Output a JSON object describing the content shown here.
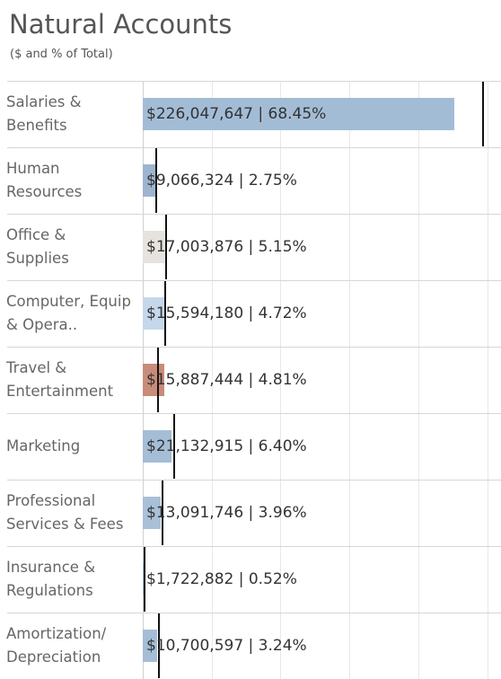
{
  "chart_data": {
    "type": "bar",
    "orientation": "horizontal",
    "title": "Natural Accounts",
    "subtitle": "($ and % of Total)",
    "categories": [
      "Salaries & Benefits",
      "Human Resources",
      "Office & Supplies",
      "Computer, Equip & Opera..",
      "Travel & Entertainment",
      "Marketing",
      "Professional Services & Fees",
      "Insurance & Regulations",
      "Amortization/ Depreciation"
    ],
    "values": [
      226047647,
      9066324,
      17003876,
      15594180,
      15887444,
      21132915,
      13091746,
      1722882,
      10700597
    ],
    "value_labels": [
      "$226,047,647 | 68.45%",
      "$9,066,324 | 2.75%",
      "$17,003,876 | 5.15%",
      "$15,594,180 | 4.72%",
      "$15,887,444 | 4.81%",
      "$21,132,915 | 6.40%",
      "$13,091,746 | 3.96%",
      "$1,722,882 | 0.52%",
      "$10,700,597 | 3.24%"
    ],
    "colors": [
      "#a3bcd6",
      "#9db5cf",
      "#e6e3de",
      "#c5d7ea",
      "#c98b7a",
      "#a5bdd6",
      "#a9c0d8",
      "#a5bdd6",
      "#a5bdd6"
    ],
    "reference_values": [
      247000000,
      9800000,
      17000000,
      16300000,
      11100000,
      22800000,
      14400000,
      1300000,
      11700000
    ],
    "xlim": [
      0,
      260000000
    ],
    "xticks": [
      0,
      50000000,
      100000000,
      150000000,
      200000000,
      250000000
    ],
    "grid": true
  }
}
